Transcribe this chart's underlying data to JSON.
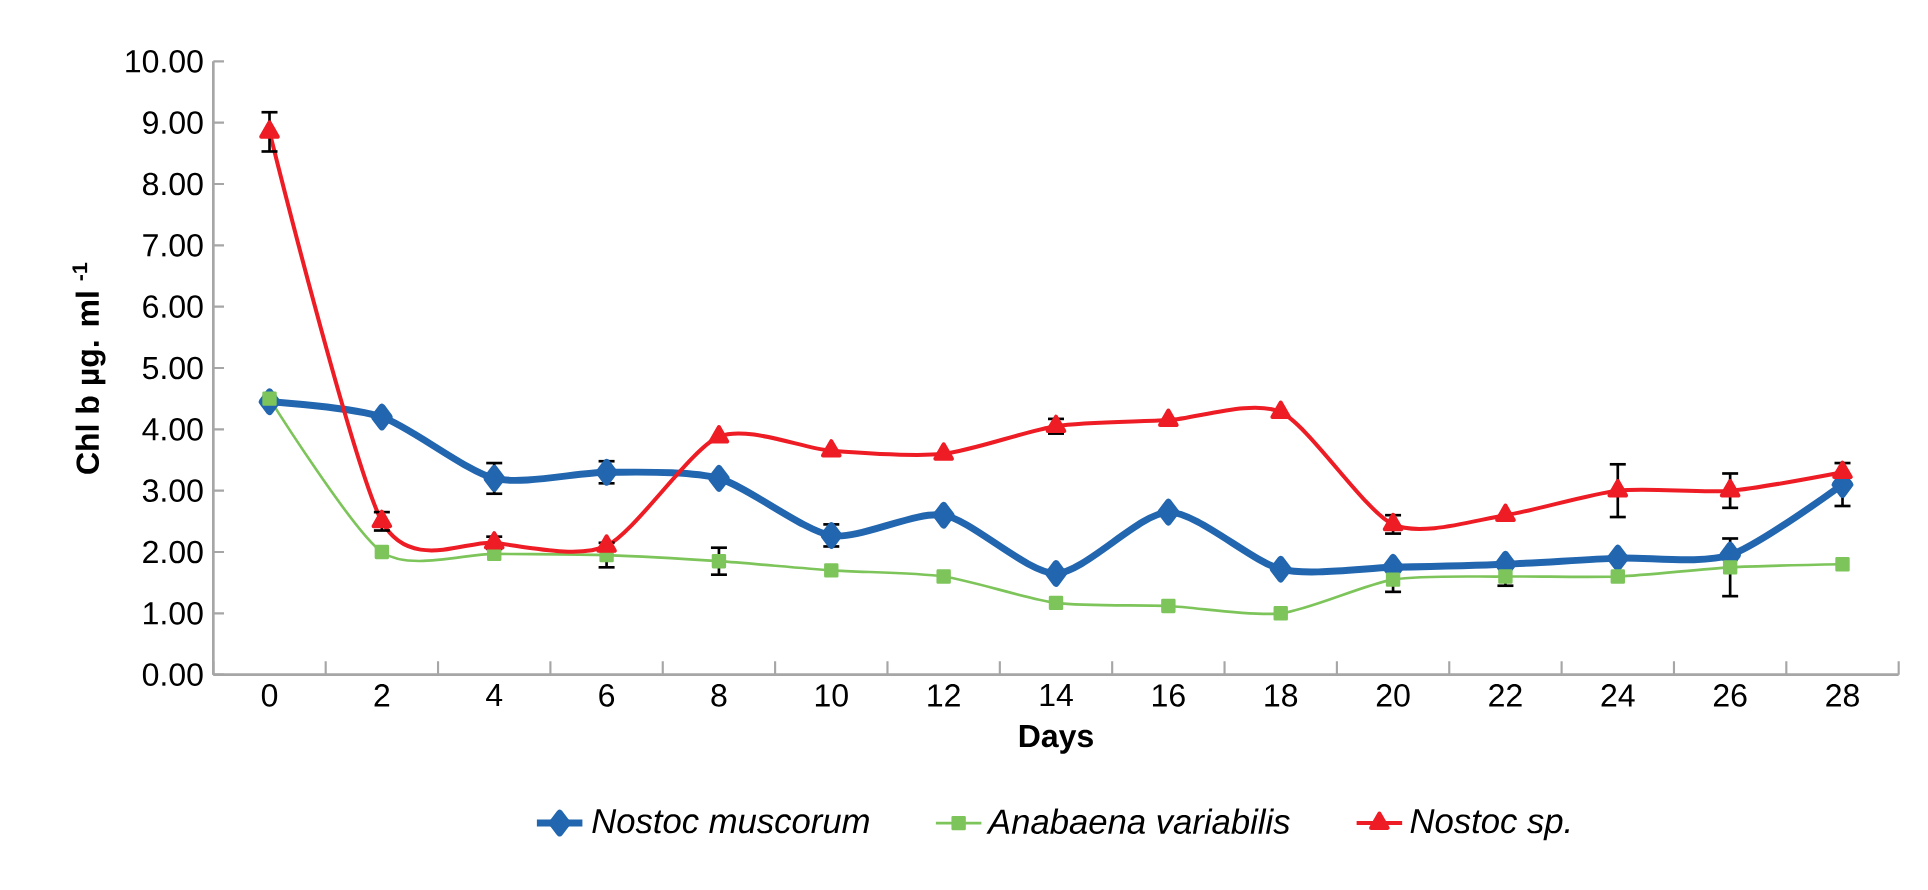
{
  "chart_data": {
    "type": "line",
    "xlabel": "Days",
    "ylabel": "Chl b µg. ml $^{-1}$",
    "categories": [
      "0",
      "2",
      "4",
      "6",
      "8",
      "10",
      "12",
      "14",
      "16",
      "18",
      "20",
      "22",
      "24",
      "26",
      "28"
    ],
    "ylim": [
      0,
      10
    ],
    "yticks": [
      {
        "value": 0,
        "label": "0.00"
      },
      {
        "value": 1,
        "label": "1.00"
      },
      {
        "value": 2,
        "label": "2.00"
      },
      {
        "value": 3,
        "label": "3.00"
      },
      {
        "value": 4,
        "label": "4.00"
      },
      {
        "value": 5,
        "label": "5.00"
      },
      {
        "value": 6,
        "label": "6.00"
      },
      {
        "value": 7,
        "label": "7.00"
      },
      {
        "value": 8,
        "label": "8.00"
      },
      {
        "value": 9,
        "label": "9.00"
      },
      {
        "value": 10,
        "label": "10.00"
      }
    ],
    "grid": false,
    "legend": "bottom",
    "line_style": "solid",
    "series": [
      {
        "name": "Nostoc muscorum",
        "color": "#2266b0",
        "marker": "diamond",
        "values": [
          4.45,
          4.2,
          3.2,
          3.3,
          3.2,
          2.27,
          2.6,
          1.65,
          2.65,
          1.72,
          1.75,
          1.8,
          1.9,
          1.95,
          3.1
        ],
        "errors": [
          null,
          null,
          0.25,
          0.18,
          null,
          0.18,
          null,
          null,
          null,
          null,
          null,
          null,
          null,
          null,
          0.35
        ]
      },
      {
        "name": "Anabaena variabilis",
        "color": "#7dc55a",
        "marker": "square",
        "values": [
          4.5,
          2.0,
          1.97,
          1.95,
          1.85,
          1.7,
          1.6,
          1.17,
          1.12,
          1.0,
          1.55,
          1.6,
          1.6,
          1.75,
          1.8
        ],
        "errors": [
          null,
          null,
          null,
          0.2,
          0.22,
          null,
          null,
          null,
          null,
          null,
          0.2,
          0.15,
          null,
          0.47,
          null
        ]
      },
      {
        "name": "Nostoc sp.",
        "color": "#ee1c24",
        "marker": "triangle",
        "values": [
          8.85,
          2.5,
          2.15,
          2.1,
          3.88,
          3.65,
          3.6,
          4.05,
          4.15,
          4.28,
          2.45,
          2.6,
          3.0,
          3.0,
          3.3
        ],
        "errors": [
          0.32,
          0.15,
          0.1,
          null,
          null,
          null,
          null,
          0.12,
          null,
          null,
          0.15,
          null,
          0.43,
          0.28,
          null
        ]
      }
    ]
  }
}
